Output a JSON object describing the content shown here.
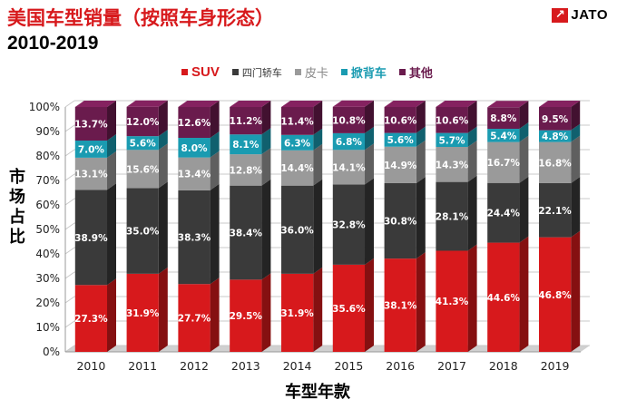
{
  "title": "美国车型销量（按照车身形态）",
  "subtitle": "2010-2019",
  "logo": {
    "text": "JATO",
    "mark": "↗"
  },
  "chart_data": {
    "type": "bar",
    "stacked": true,
    "categories": [
      "2010",
      "2011",
      "2012",
      "2013",
      "2014",
      "2015",
      "2016",
      "2017",
      "2018",
      "2019"
    ],
    "series": [
      {
        "name": "SUV",
        "color": "#d7191c",
        "values": [
          27.3,
          31.9,
          27.7,
          29.5,
          31.9,
          35.6,
          38.1,
          41.3,
          44.6,
          46.8
        ]
      },
      {
        "name": "四门轿车",
        "color": "#3a3a3a",
        "values": [
          38.9,
          35.0,
          38.3,
          38.4,
          36.0,
          32.8,
          30.8,
          28.1,
          24.4,
          22.1
        ]
      },
      {
        "name": "皮卡",
        "color": "#9a9a9a",
        "values": [
          13.1,
          15.6,
          13.4,
          12.8,
          14.4,
          14.1,
          14.9,
          14.3,
          16.7,
          16.8
        ]
      },
      {
        "name": "掀背车",
        "color": "#1a9bb1",
        "values": [
          7.0,
          5.6,
          8.0,
          8.1,
          6.3,
          6.8,
          5.6,
          5.7,
          5.4,
          4.8
        ]
      },
      {
        "name": "其他",
        "color": "#6a1b4d",
        "values": [
          13.7,
          12.0,
          12.6,
          11.2,
          11.4,
          10.8,
          10.6,
          10.6,
          8.8,
          9.5
        ]
      }
    ],
    "labels": [
      [
        "27.3%",
        "31.9%",
        "27.7%",
        "29.5%",
        "31.9%",
        "35.6%",
        "38.1%",
        "41.3%",
        "44.6%",
        "46.8%"
      ],
      [
        "38.9%",
        "35.0%",
        "38.3%",
        "38.4%",
        "36.0%",
        "32.8%",
        "30.8%",
        "28.1%",
        "24.4%",
        "22.1%"
      ],
      [
        "13.1%",
        "15.6%",
        "13.4%",
        "12.8%",
        "14.4%",
        "14.1%",
        "14.9%",
        "14.3%",
        "16.7%",
        "16.8%"
      ],
      [
        "7.0%",
        "5.6%",
        "8.0%",
        "8.1%",
        "6.3%",
        "6.8%",
        "5.6%",
        "5.7%",
        "5.4%",
        "4.8%"
      ],
      [
        "13.7%",
        "12.0%",
        "12.6%",
        "11.2%",
        "11.4%",
        "10.8%",
        "10.6%",
        "10.6%",
        "8.8%",
        "9.5%"
      ]
    ],
    "yticks": [
      "0%",
      "10%",
      "20%",
      "30%",
      "40%",
      "50%",
      "60%",
      "70%",
      "80%",
      "90%",
      "100%"
    ],
    "ylim": [
      0,
      100
    ],
    "xlabel": "车型年款",
    "ylabel": "市场占比",
    "grid": true,
    "legend": "top"
  }
}
